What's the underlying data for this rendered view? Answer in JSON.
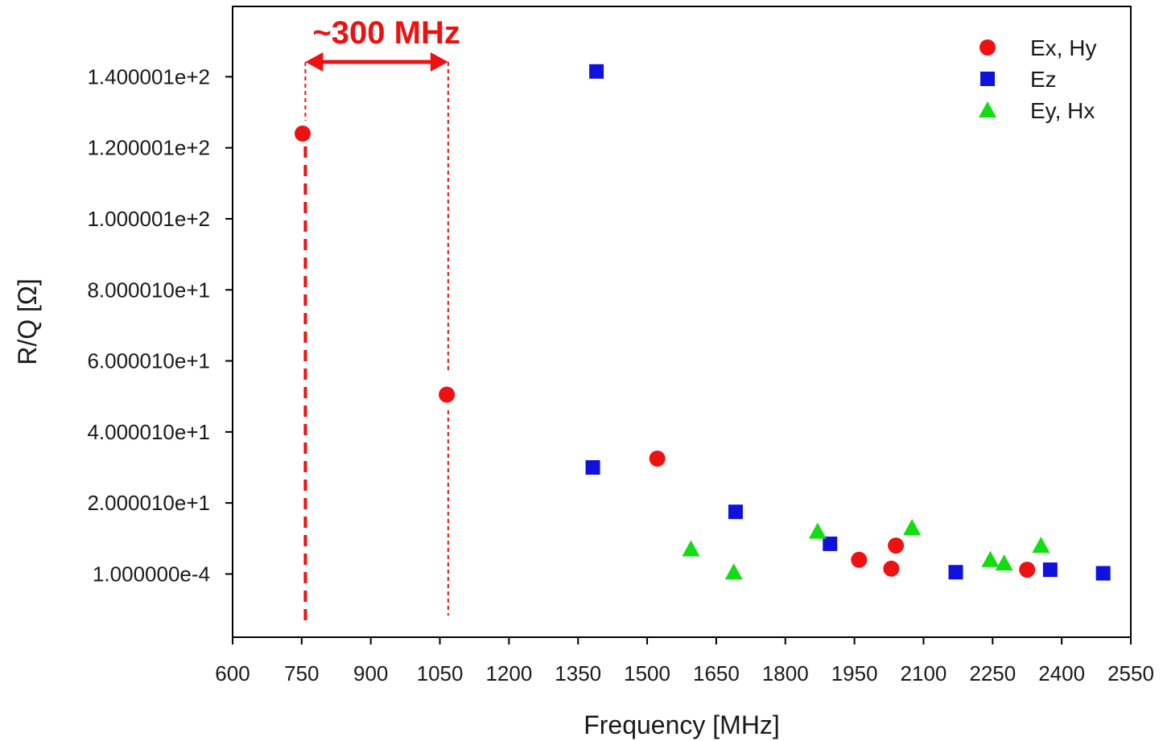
{
  "chart_data": {
    "type": "scatter",
    "xlabel": "Frequency [MHz]",
    "ylabel": "R/Q [Ω]",
    "xlim": [
      600,
      2550
    ],
    "x_ticks": [
      600,
      750,
      900,
      1050,
      1200,
      1350,
      1500,
      1650,
      1800,
      1950,
      2100,
      2250,
      2400,
      2550
    ],
    "y_ticks": [
      {
        "value": 0.0001,
        "label": "1.000000e-4"
      },
      {
        "value": 20.0001,
        "label": "2.000010e+1"
      },
      {
        "value": 40.0001,
        "label": "4.000010e+1"
      },
      {
        "value": 60.0001,
        "label": "6.000010e+1"
      },
      {
        "value": 80.0001,
        "label": "8.000010e+1"
      },
      {
        "value": 100.0001,
        "label": "1.000001e+2"
      },
      {
        "value": 120.0001,
        "label": "1.200001e+2"
      },
      {
        "value": 140.0001,
        "label": "1.400001e+2"
      }
    ],
    "ylim": [
      -17.8,
      159.8
    ],
    "grid": false,
    "legend_position": "top-right",
    "series": [
      {
        "name": "Ex, Hy",
        "marker": "circle",
        "color": "#ee1111",
        "points": [
          [
            752,
            124
          ],
          [
            1065,
            50.5
          ],
          [
            1522,
            32.5
          ],
          [
            1960,
            4
          ],
          [
            2030,
            1.5
          ],
          [
            2040,
            8
          ],
          [
            2325,
            1.2
          ]
        ]
      },
      {
        "name": "Ez",
        "marker": "square",
        "color": "#1111dd",
        "points": [
          [
            1390,
            141.5
          ],
          [
            1382,
            30
          ],
          [
            1692,
            17.5
          ],
          [
            1897,
            8.5
          ],
          [
            2170,
            0.5
          ],
          [
            2375,
            1.2
          ],
          [
            2490,
            0.2
          ]
        ]
      },
      {
        "name": "Ey, Hx",
        "marker": "triangle",
        "color": "#11dd11",
        "points": [
          [
            1595,
            7
          ],
          [
            1688,
            0.5
          ],
          [
            1870,
            12
          ],
          [
            2075,
            13
          ],
          [
            2245,
            4
          ],
          [
            2275,
            3
          ],
          [
            2355,
            8
          ]
        ]
      }
    ],
    "annotation": {
      "text": "~300 MHz",
      "color": "#ee1111",
      "x_start": 758,
      "x_end": 1068
    }
  }
}
